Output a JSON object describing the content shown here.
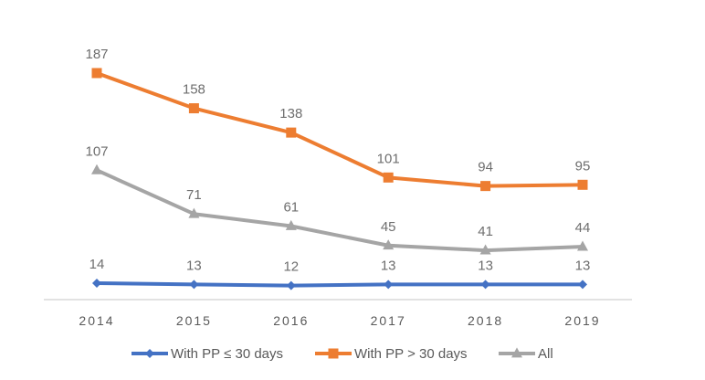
{
  "chart_data": {
    "type": "line",
    "title": "",
    "xlabel": "",
    "ylabel": "",
    "categories": [
      "2014",
      "2015",
      "2016",
      "2017",
      "2018",
      "2019"
    ],
    "ylim": [
      0,
      200
    ],
    "grid": false,
    "y_axis_visible": false,
    "legend_position": "bottom",
    "series": [
      {
        "name": "With PP ≤ 30 days",
        "color": "#4472c4",
        "marker": "diamond",
        "values": [
          14,
          13,
          12,
          13,
          13,
          13
        ]
      },
      {
        "name": "With PP > 30 days",
        "color": "#ed7d31",
        "marker": "square",
        "values": [
          187,
          158,
          138,
          101,
          94,
          95
        ]
      },
      {
        "name": "All",
        "color": "#a5a5a5",
        "marker": "triangle",
        "values": [
          107,
          71,
          61,
          45,
          41,
          44
        ]
      }
    ]
  }
}
